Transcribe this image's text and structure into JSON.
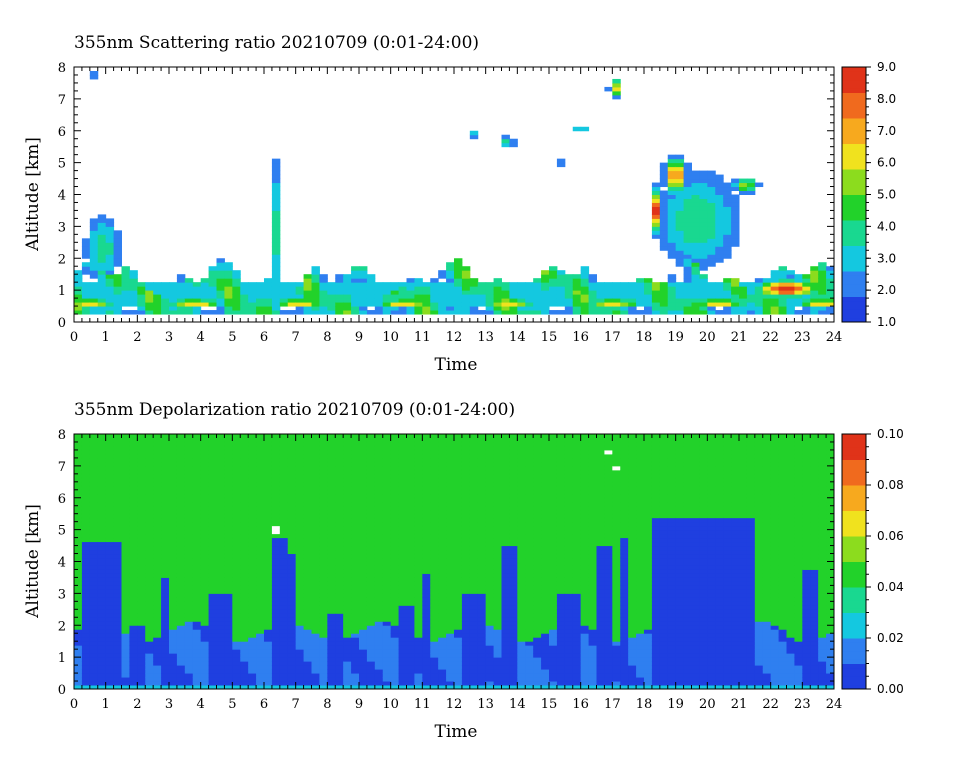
{
  "chart_data": [
    {
      "type": "heatmap",
      "title": "355nm Scattering ratio  20210709 (0:01-24:00)",
      "xlabel": "Time",
      "ylabel": "Altitude [km]",
      "xlim": [
        0,
        24
      ],
      "ylim": [
        0,
        8
      ],
      "x_ticks": [
        "0",
        "1",
        "2",
        "3",
        "4",
        "5",
        "6",
        "7",
        "8",
        "9",
        "10",
        "11",
        "12",
        "13",
        "14",
        "15",
        "16",
        "17",
        "18",
        "19",
        "20",
        "21",
        "22",
        "23",
        "24"
      ],
      "y_ticks": [
        "0",
        "1",
        "2",
        "3",
        "4",
        "5",
        "6",
        "7",
        "8"
      ],
      "colorbar": {
        "min": 1.0,
        "max": 9.0,
        "ticks": [
          "1.0",
          "2.0",
          "3.0",
          "4.0",
          "5.0",
          "6.0",
          "7.0",
          "8.0",
          "9.0"
        ],
        "colors": [
          "#1f3fe0",
          "#2f7ff0",
          "#14c8e0",
          "#19d890",
          "#22d22a",
          "#8cdc1e",
          "#f0e21e",
          "#f7a91e",
          "#f06a1e",
          "#e03319"
        ]
      },
      "background_value": "white (below threshold)",
      "features": [
        {
          "name": "boundary layer aerosol",
          "time_range": [
            0,
            24
          ],
          "altitude_range_km": [
            0.3,
            2.0
          ],
          "value_range": [
            2.0,
            9.0
          ]
        },
        {
          "name": "plume near 6 h",
          "time_range": [
            6.1,
            6.6
          ],
          "altitude_range_km": [
            0.5,
            5.0
          ],
          "value_range": [
            2.0,
            4.0
          ]
        },
        {
          "name": "elevated layer 18-21 h",
          "time_range": [
            18,
            21.3
          ],
          "altitude_range_km": [
            1.5,
            5.2
          ],
          "value_range": [
            2.0,
            9.0
          ]
        },
        {
          "name": "isolated cloud 17 h",
          "time_range": [
            16.9,
            17.2
          ],
          "altitude_range_km": [
            7.1,
            7.6
          ],
          "value_range": [
            3.0,
            9.0
          ]
        }
      ]
    },
    {
      "type": "heatmap",
      "title": "355nm Depolarization ratio  20210709 (0:01-24:00)",
      "xlabel": "Time",
      "ylabel": "Altitude [km]",
      "xlim": [
        0,
        24
      ],
      "ylim": [
        0,
        8
      ],
      "x_ticks": [
        "0",
        "1",
        "2",
        "3",
        "4",
        "5",
        "6",
        "7",
        "8",
        "9",
        "10",
        "11",
        "12",
        "13",
        "14",
        "15",
        "16",
        "17",
        "18",
        "19",
        "20",
        "21",
        "22",
        "23",
        "24"
      ],
      "y_ticks": [
        "0",
        "1",
        "2",
        "3",
        "4",
        "5",
        "6",
        "7",
        "8"
      ],
      "colorbar": {
        "min": 0.0,
        "max": 0.1,
        "ticks": [
          "0.00",
          "0.02",
          "0.04",
          "0.06",
          "0.08",
          "0.10"
        ],
        "colors": [
          "#1f3fe0",
          "#2f7ff0",
          "#14c8e0",
          "#19d890",
          "#22d22a",
          "#8cdc1e",
          "#f0e21e",
          "#f7a91e",
          "#f06a1e",
          "#e03319"
        ]
      },
      "background_value": 0.042,
      "features": [
        {
          "name": "low depolarization column 0.5-1.5 h",
          "time_range": [
            0.3,
            1.5
          ],
          "altitude_range_km": [
            0,
            4.6
          ],
          "value_range": [
            0.0,
            0.01
          ]
        },
        {
          "name": "low depolarization column 6-7 h",
          "time_range": [
            6.0,
            6.8
          ],
          "altitude_range_km": [
            0,
            4.8
          ],
          "value_range": [
            0.0,
            0.01
          ]
        },
        {
          "name": "low depolarization region 18-21.5 h",
          "time_range": [
            18,
            21.8
          ],
          "altitude_range_km": [
            0,
            5.5
          ],
          "value_range": [
            0.0,
            0.01
          ]
        },
        {
          "name": "boundary layer",
          "time_range": [
            0,
            24
          ],
          "altitude_range_km": [
            0,
            2.0
          ],
          "value_range": [
            0.0,
            0.02
          ]
        }
      ]
    }
  ]
}
